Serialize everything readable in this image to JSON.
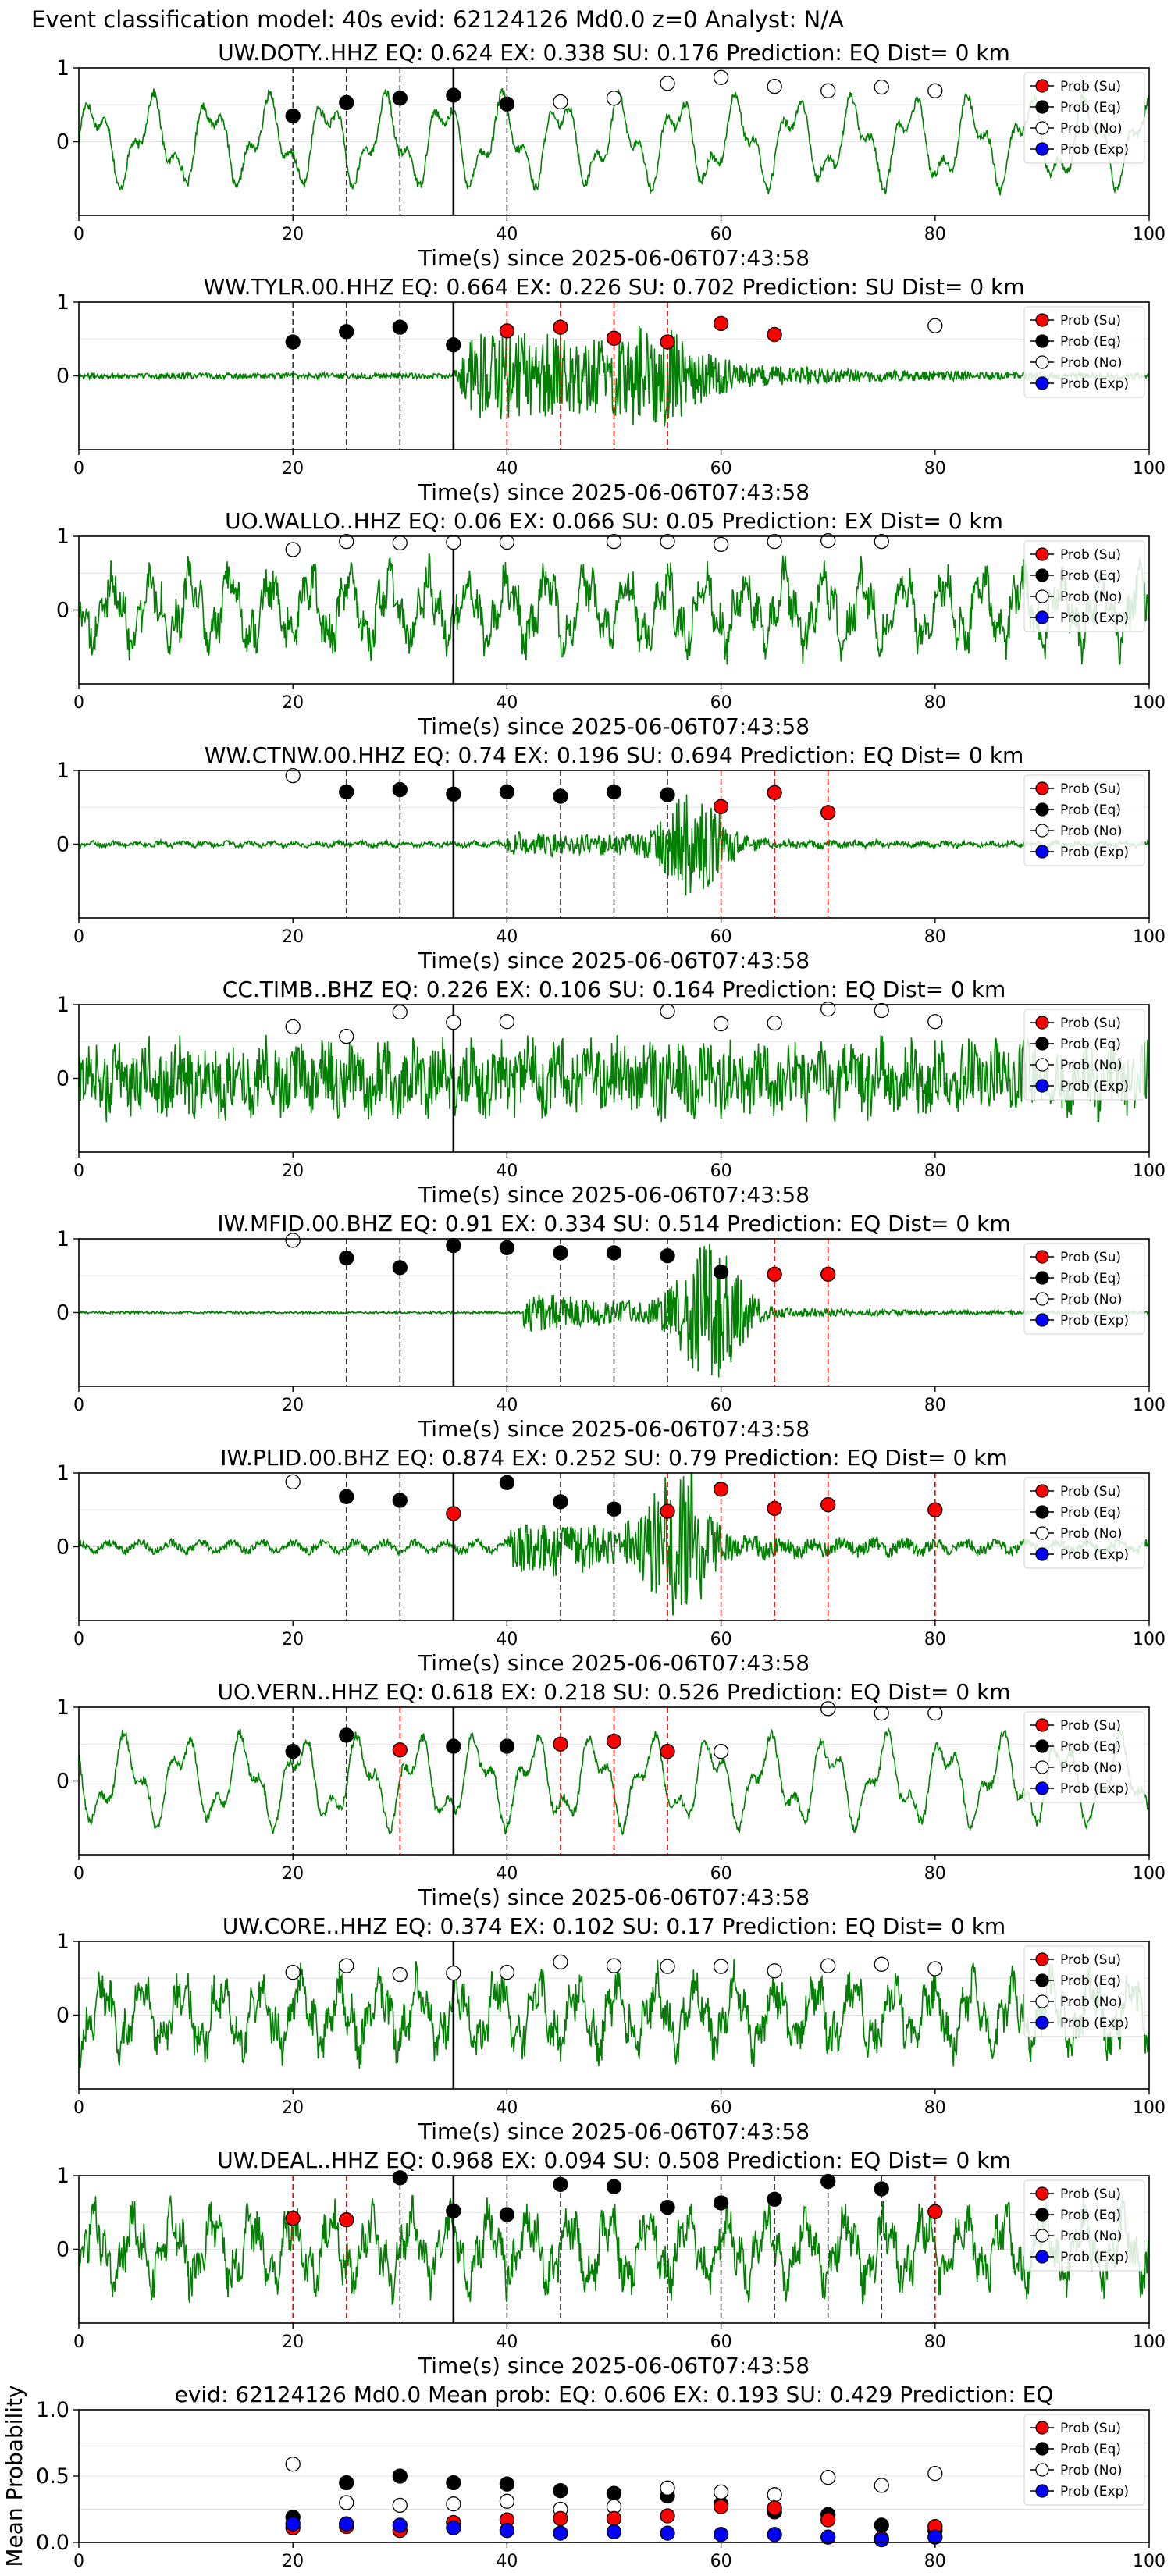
{
  "figure_title": "Event classification model: 40s evid: 62124126 Md0.0 z=0 Analyst: N/A",
  "legend_labels": [
    "Prob (Su)",
    "Prob (Eq)",
    "Prob (No)",
    "Prob (Exp)"
  ],
  "colors": {
    "waveform": "#008000",
    "su": "#ff0000",
    "eq": "#000000",
    "no": "#ffffff",
    "exp": "#0000ff",
    "red_line": "#ff0000",
    "black_line": "#000000"
  },
  "chart_data": [
    {
      "type": "line",
      "title": "UW.DOTY..HHZ   EQ: 0.624  EX: 0.338  SU: 0.176   Prediction: EQ    Dist= 0 km",
      "xlabel": "Time(s) since 2025-06-06T07:43:58",
      "xlim": [
        0,
        100
      ],
      "ylim": [
        -1,
        1
      ],
      "xticks": [
        "0",
        "20",
        "40",
        "60",
        "80",
        "100"
      ],
      "yticks": [
        "1",
        "0"
      ],
      "waveform_style": "low",
      "arrival_line_x": 35,
      "window_lines": {
        "black": [
          20,
          25,
          30,
          40
        ],
        "red": []
      },
      "series": [
        {
          "name": "Prob (Eq)",
          "x": [
            20,
            25,
            30,
            35,
            40
          ],
          "y": [
            0.35,
            0.53,
            0.59,
            0.63,
            0.51
          ]
        },
        {
          "name": "Prob (No)",
          "x": [
            45,
            50,
            55,
            60,
            65,
            70,
            75,
            80
          ],
          "y": [
            0.54,
            0.59,
            0.79,
            0.87,
            0.75,
            0.69,
            0.74,
            0.69
          ]
        },
        {
          "name": "Prob (Su)",
          "x": [],
          "y": []
        },
        {
          "name": "Prob (Exp)",
          "x": [],
          "y": []
        }
      ]
    },
    {
      "type": "line",
      "title": "WW.TYLR.00.HHZ   EQ: 0.664  EX: 0.226  SU: 0.702   Prediction: SU    Dist= 0 km",
      "xlabel": "Time(s) since 2025-06-06T07:43:58",
      "xlim": [
        0,
        100
      ],
      "ylim": [
        -1,
        1
      ],
      "xticks": [
        "0",
        "20",
        "40",
        "60",
        "80",
        "100"
      ],
      "yticks": [
        "1",
        "0"
      ],
      "waveform_style": "event_early",
      "arrival_line_x": 35,
      "window_lines": {
        "black": [
          20,
          25,
          30
        ],
        "red": [
          40,
          45,
          50,
          55
        ]
      },
      "series": [
        {
          "name": "Prob (Eq)",
          "x": [
            20,
            25,
            30,
            35
          ],
          "y": [
            0.46,
            0.6,
            0.66,
            0.42
          ]
        },
        {
          "name": "Prob (Su)",
          "x": [
            40,
            45,
            50,
            55,
            60,
            65
          ],
          "y": [
            0.61,
            0.66,
            0.51,
            0.46,
            0.71,
            0.56
          ]
        },
        {
          "name": "Prob (No)",
          "x": [
            80
          ],
          "y": [
            0.68
          ]
        },
        {
          "name": "Prob (Exp)",
          "x": [],
          "y": []
        }
      ]
    },
    {
      "type": "line",
      "title": "UO.WALLO..HHZ   EQ: 0.06  EX: 0.066  SU: 0.05   Prediction: EX    Dist= 0 km",
      "xlabel": "Time(s) since 2025-06-06T07:43:58",
      "xlim": [
        0,
        100
      ],
      "ylim": [
        -1,
        1
      ],
      "xticks": [
        "0",
        "20",
        "40",
        "60",
        "80",
        "100"
      ],
      "yticks": [
        "1",
        "0"
      ],
      "waveform_style": "noise",
      "arrival_line_x": 35,
      "window_lines": {
        "black": [],
        "red": []
      },
      "series": [
        {
          "name": "Prob (No)",
          "x": [
            20,
            25,
            30,
            35,
            40,
            50,
            55,
            60,
            65,
            70,
            75
          ],
          "y": [
            0.82,
            0.93,
            0.91,
            0.92,
            0.92,
            0.93,
            0.93,
            0.89,
            0.93,
            0.94,
            0.93
          ]
        },
        {
          "name": "Prob (Su)",
          "x": [],
          "y": []
        },
        {
          "name": "Prob (Eq)",
          "x": [],
          "y": []
        },
        {
          "name": "Prob (Exp)",
          "x": [],
          "y": []
        }
      ]
    },
    {
      "type": "line",
      "title": "WW.CTNW.00.HHZ   EQ: 0.74  EX: 0.196  SU: 0.694   Prediction: EQ    Dist= 0 km",
      "xlabel": "Time(s) since 2025-06-06T07:43:58",
      "xlim": [
        0,
        100
      ],
      "ylim": [
        -1,
        1
      ],
      "xticks": [
        "0",
        "20",
        "40",
        "60",
        "80",
        "100"
      ],
      "yticks": [
        "1",
        "0"
      ],
      "waveform_style": "event_late",
      "arrival_line_x": 35,
      "window_lines": {
        "black": [
          25,
          30,
          40,
          45,
          50,
          55
        ],
        "red": [
          60,
          65,
          70
        ]
      },
      "series": [
        {
          "name": "Prob (No)",
          "x": [
            20
          ],
          "y": [
            0.93
          ]
        },
        {
          "name": "Prob (Eq)",
          "x": [
            25,
            30,
            35,
            40,
            45,
            50,
            55
          ],
          "y": [
            0.71,
            0.74,
            0.68,
            0.71,
            0.65,
            0.71,
            0.67
          ]
        },
        {
          "name": "Prob (Su)",
          "x": [
            60,
            65,
            70
          ],
          "y": [
            0.51,
            0.7,
            0.43
          ]
        },
        {
          "name": "Prob (Exp)",
          "x": [],
          "y": []
        }
      ]
    },
    {
      "type": "line",
      "title": "CC.TIMB..BHZ   EQ: 0.226  EX: 0.106  SU: 0.164   Prediction: EQ    Dist= 0 km",
      "xlabel": "Time(s) since 2025-06-06T07:43:58",
      "xlim": [
        0,
        100
      ],
      "ylim": [
        -1,
        1
      ],
      "xticks": [
        "0",
        "20",
        "40",
        "60",
        "80",
        "100"
      ],
      "yticks": [
        "1",
        "0"
      ],
      "waveform_style": "noise_dense",
      "arrival_line_x": 35,
      "window_lines": {
        "black": [],
        "red": []
      },
      "series": [
        {
          "name": "Prob (No)",
          "x": [
            20,
            25,
            30,
            35,
            40,
            55,
            60,
            65,
            70,
            75,
            80
          ],
          "y": [
            0.7,
            0.57,
            0.9,
            0.76,
            0.77,
            0.91,
            0.74,
            0.75,
            0.94,
            0.92,
            0.77
          ]
        },
        {
          "name": "Prob (Su)",
          "x": [],
          "y": []
        },
        {
          "name": "Prob (Eq)",
          "x": [],
          "y": []
        },
        {
          "name": "Prob (Exp)",
          "x": [],
          "y": []
        }
      ]
    },
    {
      "type": "line",
      "title": "IW.MFID.00.BHZ   EQ: 0.91  EX: 0.334  SU: 0.514   Prediction: EQ    Dist= 0 km",
      "xlabel": "Time(s) since 2025-06-06T07:43:58",
      "xlim": [
        0,
        100
      ],
      "ylim": [
        -1,
        1
      ],
      "xticks": [
        "0",
        "20",
        "40",
        "60",
        "80",
        "100"
      ],
      "yticks": [
        "1",
        "0"
      ],
      "waveform_style": "event_quiet",
      "arrival_line_x": 35,
      "window_lines": {
        "black": [
          25,
          30,
          40,
          45,
          50,
          55
        ],
        "red": [
          65,
          70
        ]
      },
      "series": [
        {
          "name": "Prob (No)",
          "x": [
            20
          ],
          "y": [
            0.98
          ]
        },
        {
          "name": "Prob (Eq)",
          "x": [
            25,
            30,
            35,
            40,
            45,
            50,
            55,
            60
          ],
          "y": [
            0.74,
            0.61,
            0.91,
            0.88,
            0.81,
            0.81,
            0.77,
            0.55
          ]
        },
        {
          "name": "Prob (Su)",
          "x": [
            65,
            70
          ],
          "y": [
            0.52,
            0.52
          ]
        },
        {
          "name": "Prob (Exp)",
          "x": [],
          "y": []
        }
      ]
    },
    {
      "type": "line",
      "title": "IW.PLID.00.BHZ   EQ: 0.874  EX: 0.252  SU: 0.79   Prediction: EQ    Dist= 0 km",
      "xlabel": "Time(s) since 2025-06-06T07:43:58",
      "xlim": [
        0,
        100
      ],
      "ylim": [
        -1,
        1
      ],
      "xticks": [
        "0",
        "20",
        "40",
        "60",
        "80",
        "100"
      ],
      "yticks": [
        "1",
        "0"
      ],
      "waveform_style": "event_mid",
      "arrival_line_x": 35,
      "window_lines": {
        "black": [
          25,
          30,
          45,
          50
        ],
        "red": [
          55,
          60,
          65,
          70,
          80
        ]
      },
      "series": [
        {
          "name": "Prob (No)",
          "x": [
            20
          ],
          "y": [
            0.88
          ]
        },
        {
          "name": "Prob (Eq)",
          "x": [
            25,
            30,
            40,
            45,
            50
          ],
          "y": [
            0.68,
            0.63,
            0.87,
            0.61,
            0.51
          ]
        },
        {
          "name": "Prob (Su)",
          "x": [
            35,
            55,
            60,
            65,
            70,
            80
          ],
          "y": [
            0.45,
            0.48,
            0.78,
            0.52,
            0.57,
            0.5
          ]
        },
        {
          "name": "Prob (Exp)",
          "x": [],
          "y": []
        }
      ]
    },
    {
      "type": "line",
      "title": "UO.VERN..HHZ   EQ: 0.618  EX: 0.218  SU: 0.526   Prediction: EQ    Dist= 0 km",
      "xlabel": "Time(s) since 2025-06-06T07:43:58",
      "xlim": [
        0,
        100
      ],
      "ylim": [
        -1,
        1
      ],
      "xticks": [
        "0",
        "20",
        "40",
        "60",
        "80",
        "100"
      ],
      "yticks": [
        "1",
        "0"
      ],
      "waveform_style": "low",
      "arrival_line_x": 35,
      "window_lines": {
        "black": [
          20,
          25,
          40
        ],
        "red": [
          30,
          45,
          50,
          55
        ]
      },
      "series": [
        {
          "name": "Prob (Eq)",
          "x": [
            20,
            25,
            35,
            40
          ],
          "y": [
            0.4,
            0.62,
            0.47,
            0.47
          ]
        },
        {
          "name": "Prob (Su)",
          "x": [
            30,
            45,
            50,
            55
          ],
          "y": [
            0.42,
            0.5,
            0.54,
            0.4
          ]
        },
        {
          "name": "Prob (No)",
          "x": [
            60,
            70,
            75,
            80
          ],
          "y": [
            0.4,
            0.98,
            0.92,
            0.92
          ]
        },
        {
          "name": "Prob (Exp)",
          "x": [],
          "y": []
        }
      ]
    },
    {
      "type": "line",
      "title": "UW.CORE..HHZ   EQ: 0.374  EX: 0.102  SU: 0.17   Prediction: EQ    Dist= 0 km",
      "xlabel": "Time(s) since 2025-06-06T07:43:58",
      "xlim": [
        0,
        100
      ],
      "ylim": [
        -1,
        1
      ],
      "xticks": [
        "0",
        "20",
        "40",
        "60",
        "80",
        "100"
      ],
      "yticks": [
        "1",
        "0"
      ],
      "waveform_style": "noise",
      "arrival_line_x": 35,
      "window_lines": {
        "black": [],
        "red": []
      },
      "series": [
        {
          "name": "Prob (No)",
          "x": [
            20,
            25,
            30,
            35,
            40,
            45,
            50,
            55,
            60,
            65,
            70,
            75,
            80
          ],
          "y": [
            0.58,
            0.67,
            0.55,
            0.57,
            0.58,
            0.72,
            0.67,
            0.66,
            0.66,
            0.6,
            0.67,
            0.69,
            0.63
          ]
        },
        {
          "name": "Prob (Su)",
          "x": [],
          "y": []
        },
        {
          "name": "Prob (Eq)",
          "x": [],
          "y": []
        },
        {
          "name": "Prob (Exp)",
          "x": [],
          "y": []
        }
      ]
    },
    {
      "type": "line",
      "title": "UW.DEAL..HHZ   EQ: 0.968  EX: 0.094  SU: 0.508   Prediction: EQ    Dist= 0 km",
      "xlabel": "Time(s) since 2025-06-06T07:43:58",
      "xlim": [
        0,
        100
      ],
      "ylim": [
        -1,
        1
      ],
      "xticks": [
        "0",
        "20",
        "40",
        "60",
        "80",
        "100"
      ],
      "yticks": [
        "1",
        "0"
      ],
      "waveform_style": "noise",
      "arrival_line_x": 35,
      "window_lines": {
        "black": [
          30,
          40,
          45,
          55,
          60,
          65,
          70,
          75
        ],
        "red": [
          20,
          25,
          80
        ]
      },
      "series": [
        {
          "name": "Prob (Su)",
          "x": [
            20,
            25,
            80
          ],
          "y": [
            0.42,
            0.4,
            0.51
          ]
        },
        {
          "name": "Prob (Eq)",
          "x": [
            30,
            35,
            40,
            45,
            50,
            55,
            60,
            65,
            70,
            75
          ],
          "y": [
            0.97,
            0.52,
            0.47,
            0.88,
            0.85,
            0.57,
            0.63,
            0.68,
            0.92,
            0.82
          ]
        },
        {
          "name": "Prob (No)",
          "x": [],
          "y": []
        },
        {
          "name": "Prob (Exp)",
          "x": [],
          "y": []
        }
      ]
    },
    {
      "type": "scatter",
      "title": "evid: 62124126  Md0.0   Mean prob:   EQ: 0.606  EX: 0.193  SU: 0.429   Prediction: EQ",
      "xlabel": "",
      "ylabel": "Mean Probability",
      "xlim": [
        0,
        100
      ],
      "ylim": [
        0,
        1
      ],
      "xticks": [
        "0",
        "20",
        "40",
        "60",
        "80",
        "100"
      ],
      "yticks": [
        "0.0",
        "0.5",
        "1.0"
      ],
      "series": [
        {
          "name": "Prob (Eq)",
          "x": [
            20,
            25,
            30,
            35,
            40,
            45,
            50,
            55,
            60,
            65,
            70,
            75,
            80
          ],
          "y": [
            0.19,
            0.45,
            0.5,
            0.45,
            0.44,
            0.39,
            0.37,
            0.35,
            0.29,
            0.23,
            0.21,
            0.13,
            0.09
          ]
        },
        {
          "name": "Prob (No)",
          "x": [
            20,
            25,
            30,
            35,
            40,
            45,
            50,
            55,
            60,
            65,
            70,
            75,
            80
          ],
          "y": [
            0.59,
            0.3,
            0.28,
            0.29,
            0.31,
            0.25,
            0.27,
            0.41,
            0.38,
            0.36,
            0.49,
            0.43,
            0.52
          ]
        },
        {
          "name": "Prob (Su)",
          "x": [
            20,
            25,
            30,
            35,
            40,
            45,
            50,
            55,
            60,
            65,
            70,
            75,
            80
          ],
          "y": [
            0.11,
            0.12,
            0.09,
            0.15,
            0.17,
            0.18,
            0.18,
            0.2,
            0.27,
            0.26,
            0.17,
            0.03,
            0.12
          ]
        },
        {
          "name": "Prob (Exp)",
          "x": [
            20,
            25,
            30,
            35,
            40,
            45,
            50,
            55,
            60,
            65,
            70,
            75,
            80
          ],
          "y": [
            0.14,
            0.14,
            0.13,
            0.11,
            0.09,
            0.07,
            0.08,
            0.07,
            0.06,
            0.06,
            0.04,
            0.02,
            0.04
          ]
        }
      ]
    }
  ]
}
